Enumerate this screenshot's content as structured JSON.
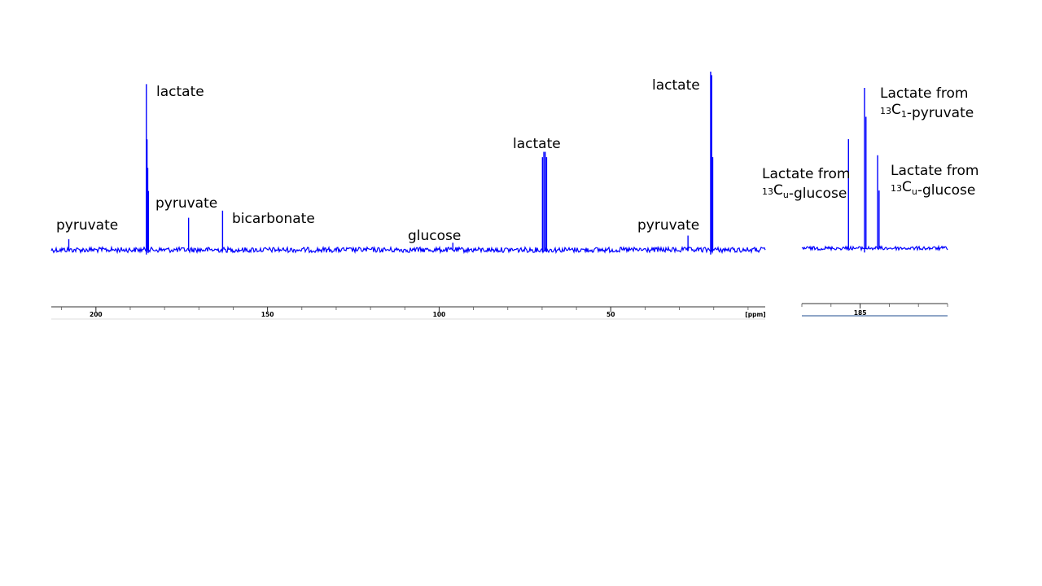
{
  "chart_data": [
    {
      "type": "line",
      "title": "",
      "xlabel": "",
      "unit_label": "[ppm]",
      "xlim": [
        213,
        5
      ],
      "ylim": [
        -0.12,
        1.0
      ],
      "x_reversed": true,
      "grid": false,
      "ticks": [
        {
          "value": 200,
          "label": "200"
        },
        {
          "value": 150,
          "label": "150"
        },
        {
          "value": 100,
          "label": "100"
        },
        {
          "value": 50,
          "label": "50"
        }
      ],
      "series": [
        {
          "color": "#0000ff",
          "peaks": [
            {
              "x": 207.9,
              "h": 0.06
            },
            {
              "x": 185.3,
              "h": 0.93,
              "neg": 0.12
            },
            {
              "x": 185.1,
              "h": 0.62
            },
            {
              "x": 184.9,
              "h": 0.46
            },
            {
              "x": 184.7,
              "h": 0.33
            },
            {
              "x": 173.0,
              "h": 0.18
            },
            {
              "x": 163.1,
              "h": 0.22
            },
            {
              "x": 96.0,
              "h": 0.04
            },
            {
              "x": 69.9,
              "h": 0.52,
              "neg": 0.06
            },
            {
              "x": 69.5,
              "h": 0.55
            },
            {
              "x": 69.1,
              "h": 0.55
            },
            {
              "x": 68.7,
              "h": 0.52,
              "neg": 0.06
            },
            {
              "x": 27.5,
              "h": 0.08
            },
            {
              "x": 20.9,
              "h": 1.0,
              "neg": 0.12
            },
            {
              "x": 20.6,
              "h": 0.98
            },
            {
              "x": 20.3,
              "h": 0.52
            }
          ]
        }
      ],
      "annotations": [
        {
          "text": "pyruvate",
          "x": 207.9
        },
        {
          "text": "lactate",
          "x": 185.3
        },
        {
          "text": "pyruvate",
          "x": 173.0
        },
        {
          "text": "bicarbonate",
          "x": 163.1
        },
        {
          "text": "glucose",
          "x": 96.0
        },
        {
          "text": "lactate",
          "x": 69.3
        },
        {
          "text": "lactate",
          "x": 20.9
        },
        {
          "text": "pyruvate",
          "x": 27.5
        }
      ]
    },
    {
      "type": "line",
      "title": "",
      "xlabel": "",
      "xlim": [
        187.0,
        182.0
      ],
      "ylim": [
        -0.12,
        1.0
      ],
      "x_reversed": true,
      "grid": false,
      "ticks": [
        {
          "value": 185,
          "label": "185"
        }
      ],
      "series": [
        {
          "color": "#0000ff",
          "peaks": [
            {
              "x": 185.4,
              "h": 0.68
            },
            {
              "x": 184.85,
              "h": 1.0,
              "neg": 0.12
            },
            {
              "x": 184.8,
              "h": 0.82
            },
            {
              "x": 184.4,
              "h": 0.58
            },
            {
              "x": 184.35,
              "h": 0.36
            }
          ]
        }
      ],
      "annotations": [
        {
          "lines": [
            [
              {
                "t": "Lactate from"
              }
            ],
            [
              {
                "t": "13",
                "sup": true
              },
              {
                "t": "C"
              },
              {
                "t": "1",
                "sub": true
              },
              {
                "t": "-pyruvate"
              }
            ]
          ]
        },
        {
          "lines": [
            [
              {
                "t": "Lactate from"
              }
            ],
            [
              {
                "t": "13",
                "sup": true
              },
              {
                "t": "C"
              },
              {
                "t": "u",
                "sub": true
              },
              {
                "t": "-glucose"
              }
            ]
          ]
        },
        {
          "lines": [
            [
              {
                "t": "Lactate from"
              }
            ],
            [
              {
                "t": "13",
                "sup": true
              },
              {
                "t": "C"
              },
              {
                "t": "u",
                "sub": true
              },
              {
                "t": "-glucose"
              }
            ]
          ]
        }
      ]
    }
  ]
}
